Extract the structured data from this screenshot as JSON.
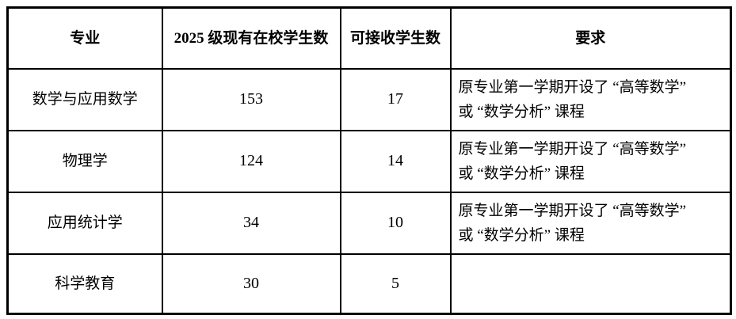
{
  "table": {
    "headers": {
      "major": "专业",
      "enrolled": "2025 级现有在校学生数",
      "capacity": "可接收学生数",
      "requirement": "要求"
    },
    "rows": [
      {
        "major": "数学与应用数学",
        "enrolled": "153",
        "capacity": "17",
        "requirement": "原专业第一学期开设了 “高等数学”\n或 “数学分析” 课程"
      },
      {
        "major": "物理学",
        "enrolled": "124",
        "capacity": "14",
        "requirement": "原专业第一学期开设了 “高等数学”\n或 “数学分析” 课程"
      },
      {
        "major": "应用统计学",
        "enrolled": "34",
        "capacity": "10",
        "requirement": "原专业第一学期开设了 “高等数学”\n或 “数学分析” 课程"
      },
      {
        "major": "科学教育",
        "enrolled": "30",
        "capacity": "5",
        "requirement": ""
      }
    ],
    "colors": {
      "border": "#000000",
      "text": "#000000",
      "background": "#ffffff"
    }
  }
}
